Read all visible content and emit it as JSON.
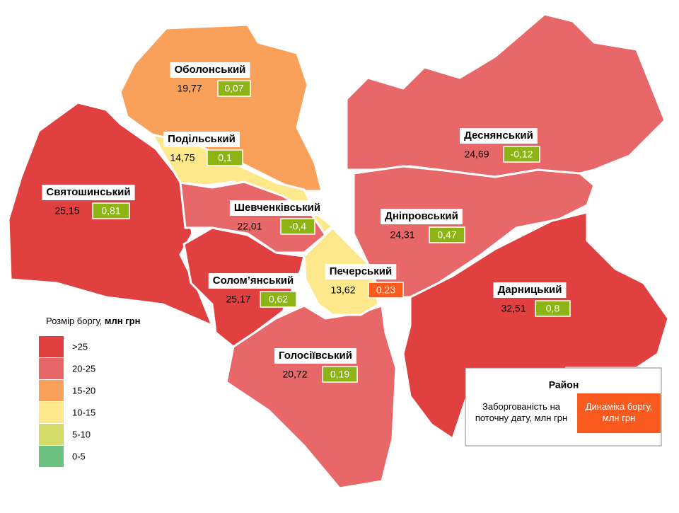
{
  "map": {
    "districts": [
      {
        "name": "Оболонський",
        "debt": "19,77",
        "change": "0,07",
        "change_color": "#8cb414"
      },
      {
        "name": "Подільський",
        "debt": "14,75",
        "change": "0,1",
        "change_color": "#8cb414"
      },
      {
        "name": "Святошинський",
        "debt": "25,15",
        "change": "0,81",
        "change_color": "#8cb414"
      },
      {
        "name": "Шевченківський",
        "debt": "22,01",
        "change": "-0,4",
        "change_color": "#8cb414"
      },
      {
        "name": "Солом’янський",
        "debt": "25,17",
        "change": "0,62",
        "change_color": "#8cb414"
      },
      {
        "name": "Печерський",
        "debt": "13,62",
        "change": "0,23",
        "change_color": "#fa5a1e"
      },
      {
        "name": "Голосіївський",
        "debt": "20,72",
        "change": "0,19",
        "change_color": "#8cb414"
      },
      {
        "name": "Деснянський",
        "debt": "24,69",
        "change": "-0,12",
        "change_color": "#8cb414"
      },
      {
        "name": "Дніпровський",
        "debt": "24,31",
        "change": "0,47",
        "change_color": "#8cb414"
      },
      {
        "name": "Дарницький",
        "debt": "32,51",
        "change": "0,8",
        "change_color": "#8cb414"
      }
    ],
    "legend": {
      "title": "Розмір боргу,",
      "unit": "млн грн",
      "items": [
        {
          "label": ">25",
          "color": "#e0403f"
        },
        {
          "label": "20-25",
          "color": "#e8686a"
        },
        {
          "label": "15-20",
          "color": "#f9a05a"
        },
        {
          "label": "10-15",
          "color": "#fde98c"
        },
        {
          "label": "5-10",
          "color": "#d4dd6a"
        },
        {
          "label": "0-5",
          "color": "#6cc080"
        }
      ]
    },
    "key": {
      "title": "Район",
      "current": "Заборгованість на поточну дату, млн грн",
      "change": "Динаміка боргу, млн грн",
      "change_color": "#fa5a1e"
    }
  }
}
